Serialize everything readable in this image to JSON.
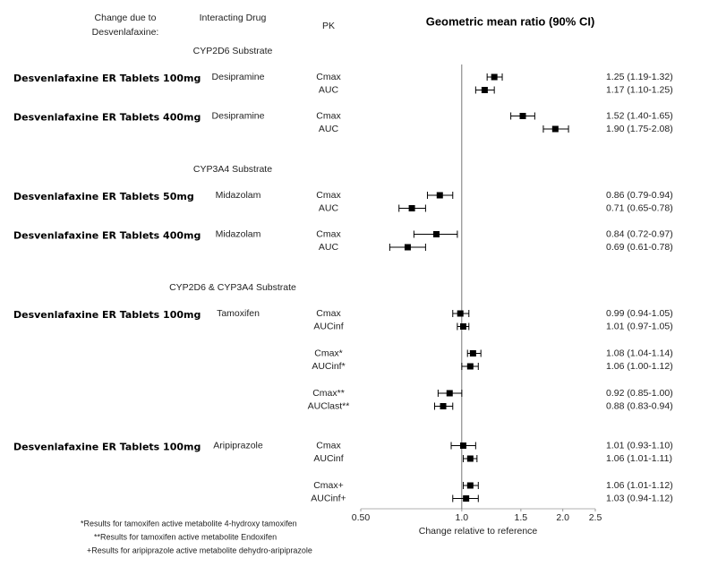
{
  "chart_data": {
    "type": "forest",
    "title": "Geometric mean ratio (90% CI)",
    "column_headers": {
      "group": [
        "Change due to",
        "Desvenlafaxine:"
      ],
      "drug": "Interacting Drug",
      "pk": "PK"
    },
    "x_label": "Change relative to reference",
    "log_scale": true,
    "xlim": [
      0.5,
      2.5
    ],
    "xticks": [
      {
        "value": 0.5,
        "label": "0.50"
      },
      {
        "value": 1,
        "label": "1.0"
      },
      1.5,
      {
        "value": 2,
        "label": "2.0"
      },
      2.5
    ],
    "reference_line": 1,
    "color": "#000000",
    "sections": [
      {
        "title": "CYP2D6 Substrate",
        "groups": [
          {
            "label": "Desvenlafaxine ER Tablets 100mg",
            "drug": "Desipramine",
            "blocks": [
              [
                {
                  "pk": "Cmax",
                  "value": 1.25,
                  "low": 1.19,
                  "high": 1.32,
                  "value_label": "1.25 (1.19-1.32)"
                },
                {
                  "pk": "AUC",
                  "value": 1.17,
                  "low": 1.1,
                  "high": 1.25,
                  "value_label": "1.17 (1.10-1.25)"
                }
              ]
            ]
          },
          {
            "label": "Desvenlafaxine ER Tablets 400mg",
            "drug": "Desipramine",
            "blocks": [
              [
                {
                  "pk": "Cmax",
                  "value": 1.52,
                  "low": 1.4,
                  "high": 1.65,
                  "value_label": "1.52 (1.40-1.65)"
                },
                {
                  "pk": "AUC",
                  "value": 1.9,
                  "low": 1.75,
                  "high": 2.08,
                  "value_label": "1.90 (1.75-2.08)"
                }
              ]
            ]
          }
        ]
      },
      {
        "title": "CYP3A4 Substrate",
        "groups": [
          {
            "label": "Desvenlafaxine ER Tablets 50mg",
            "drug": "Midazolam",
            "blocks": [
              [
                {
                  "pk": "Cmax",
                  "value": 0.86,
                  "low": 0.79,
                  "high": 0.94,
                  "value_label": "0.86 (0.79-0.94)"
                },
                {
                  "pk": "AUC",
                  "value": 0.71,
                  "low": 0.65,
                  "high": 0.78,
                  "value_label": "0.71 (0.65-0.78)"
                }
              ]
            ]
          },
          {
            "label": "Desvenlafaxine ER Tablets 400mg",
            "drug": "Midazolam",
            "blocks": [
              [
                {
                  "pk": "Cmax",
                  "value": 0.84,
                  "low": 0.72,
                  "high": 0.97,
                  "value_label": "0.84 (0.72-0.97)"
                },
                {
                  "pk": "AUC",
                  "value": 0.69,
                  "low": 0.61,
                  "high": 0.78,
                  "value_label": "0.69 (0.61-0.78)"
                }
              ]
            ]
          }
        ]
      },
      {
        "title": "CYP2D6 & CYP3A4 Substrate",
        "groups": [
          {
            "label": "Desvenlafaxine ER Tablets 100mg",
            "drug": "Tamoxifen",
            "blocks": [
              [
                {
                  "pk": "Cmax",
                  "value": 0.99,
                  "low": 0.94,
                  "high": 1.05,
                  "value_label": "0.99 (0.94-1.05)"
                },
                {
                  "pk": "AUCinf",
                  "value": 1.01,
                  "low": 0.97,
                  "high": 1.05,
                  "value_label": "1.01 (0.97-1.05)"
                }
              ],
              [
                {
                  "pk": "Cmax*",
                  "value": 1.08,
                  "low": 1.04,
                  "high": 1.14,
                  "value_label": "1.08 (1.04-1.14)"
                },
                {
                  "pk": "AUCinf*",
                  "value": 1.06,
                  "low": 1.0,
                  "high": 1.12,
                  "value_label": "1.06 (1.00-1.12)"
                }
              ],
              [
                {
                  "pk": "Cmax**",
                  "value": 0.92,
                  "low": 0.85,
                  "high": 1.0,
                  "value_label": "0.92 (0.85-1.00)"
                },
                {
                  "pk": "AUClast**",
                  "value": 0.88,
                  "low": 0.83,
                  "high": 0.94,
                  "value_label": "0.88 (0.83-0.94)"
                }
              ]
            ]
          },
          {
            "label": "Desvenlafaxine ER Tablets 100mg",
            "drug": "Aripiprazole",
            "blocks": [
              [
                {
                  "pk": "Cmax",
                  "value": 1.01,
                  "low": 0.93,
                  "high": 1.1,
                  "value_label": "1.01 (0.93-1.10)"
                },
                {
                  "pk": "AUCinf",
                  "value": 1.06,
                  "low": 1.01,
                  "high": 1.11,
                  "value_label": "1.06 (1.01-1.11)"
                }
              ],
              [
                {
                  "pk": "Cmax+",
                  "value": 1.06,
                  "low": 1.01,
                  "high": 1.12,
                  "value_label": "1.06 (1.01-1.12)"
                },
                {
                  "pk": "AUCinf+",
                  "value": 1.03,
                  "low": 0.94,
                  "high": 1.12,
                  "value_label": "1.03 (0.94-1.12)"
                }
              ]
            ]
          }
        ]
      }
    ],
    "footnotes": [
      "*Results for tamoxifen active metabolite 4-hydroxy tamoxifen",
      "**Results for tamoxifen active metabolite Endoxifen",
      "+Results for aripiprazole active metabolite dehydro-aripiprazole"
    ]
  }
}
